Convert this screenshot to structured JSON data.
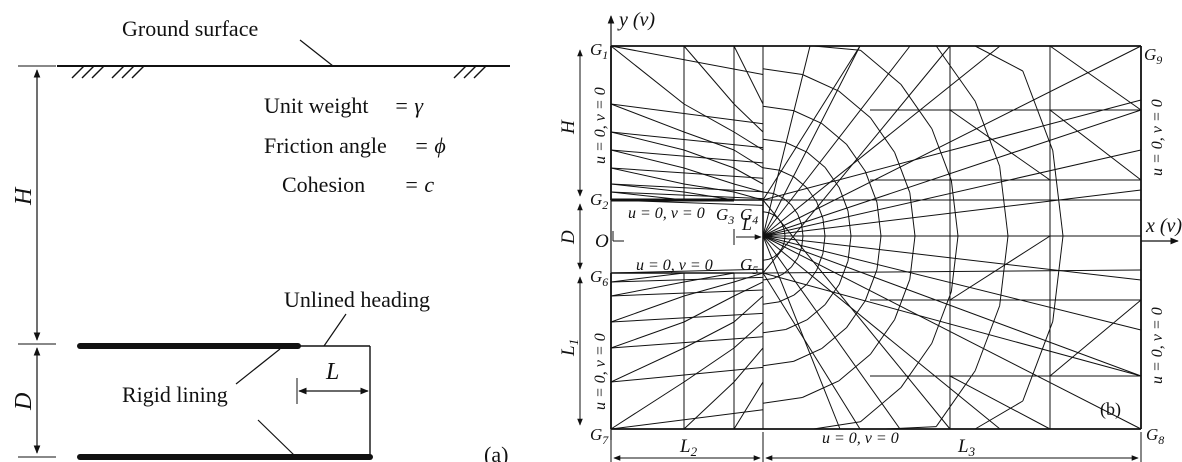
{
  "panel_a": {
    "ground_label": "Ground surface",
    "properties": {
      "unit_weight": {
        "label": "Unit weight",
        "eq": "= γ"
      },
      "friction_angle": {
        "label": "Friction angle",
        "eq": "= ϕ"
      },
      "cohesion": {
        "label": "Cohesion",
        "eq": "= c"
      }
    },
    "dim_H": "H",
    "dim_D": "D",
    "dim_L": "L",
    "unlined_label": "Unlined heading",
    "rigid_label": "Rigid lining",
    "tag": "(a)"
  },
  "panel_b": {
    "y_axis": "y (v)",
    "x_axis": "x (v)",
    "origin": "O",
    "tag": "(b)",
    "points": {
      "G1": "G",
      "G2": "G",
      "G3": "G",
      "G4": "G",
      "G5": "G",
      "G6": "G",
      "G7": "G",
      "G8": "G",
      "G9": "G"
    },
    "point_subs": {
      "G1": "1",
      "G2": "2",
      "G3": "3",
      "G4": "4",
      "G5": "5",
      "G6": "6",
      "G7": "7",
      "G8": "8",
      "G9": "9"
    },
    "bc": "u = 0, v = 0",
    "dims": {
      "H": "H",
      "D": "D",
      "L1": "L",
      "L1_sub": "1",
      "L2": "L",
      "L2_sub": "2",
      "L3": "L",
      "L3_sub": "3",
      "L": "L"
    }
  }
}
